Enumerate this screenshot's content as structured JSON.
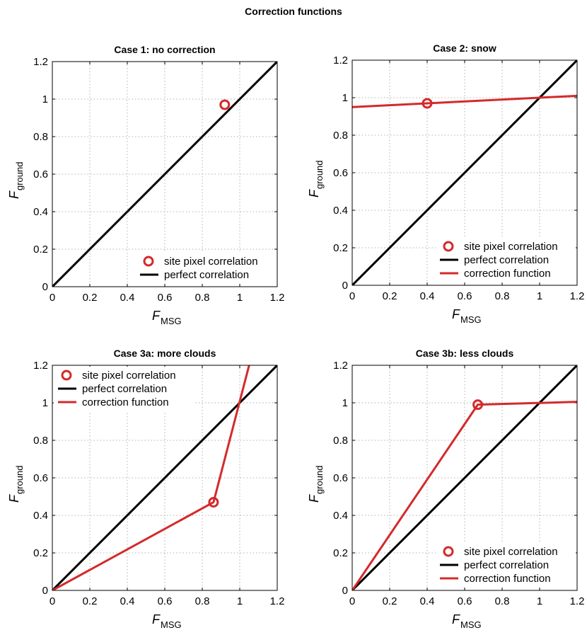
{
  "figure_title": "Correction functions",
  "colors": {
    "perfect": "#000000",
    "correction": "#d42a2a",
    "grid": "#b0b0b0"
  },
  "chart_data": [
    {
      "type": "line",
      "title": "Case 1: no correction",
      "xlabel_main": "F",
      "xlabel_sub": "MSG",
      "ylabel_main": "F",
      "ylabel_sub": "ground",
      "xlim": [
        0,
        1.2
      ],
      "ylim": [
        0,
        1.2
      ],
      "xticks": [
        "0",
        "0.2",
        "0.4",
        "0.6",
        "0.8",
        "1",
        "1.2"
      ],
      "yticks": [
        "0",
        "0.2",
        "0.4",
        "0.6",
        "0.8",
        "1",
        "1.2"
      ],
      "grid": true,
      "legend_position": "bottom-right",
      "series": [
        {
          "name": "site pixel correlation",
          "kind": "marker",
          "x": [
            0.92
          ],
          "y": [
            0.97
          ]
        },
        {
          "name": "perfect correlation",
          "kind": "perfect",
          "x": [
            0,
            1.2
          ],
          "y": [
            0,
            1.2
          ]
        }
      ]
    },
    {
      "type": "line",
      "title": "Case 2: snow",
      "xlabel_main": "F",
      "xlabel_sub": "MSG",
      "ylabel_main": "F",
      "ylabel_sub": "ground",
      "xlim": [
        0,
        1.2
      ],
      "ylim": [
        0,
        1.2
      ],
      "xticks": [
        "0",
        "0.2",
        "0.4",
        "0.6",
        "0.8",
        "1",
        "1.2"
      ],
      "yticks": [
        "0",
        "0.2",
        "0.4",
        "0.6",
        "0.8",
        "1",
        "1.2"
      ],
      "grid": true,
      "legend_position": "bottom-right",
      "series": [
        {
          "name": "site pixel correlation",
          "kind": "marker",
          "x": [
            0.4
          ],
          "y": [
            0.97
          ]
        },
        {
          "name": "perfect correlation",
          "kind": "perfect",
          "x": [
            0,
            1.2
          ],
          "y": [
            0,
            1.2
          ]
        },
        {
          "name": "correction function",
          "kind": "correction",
          "x": [
            0,
            1.2
          ],
          "y": [
            0.95,
            1.01
          ]
        }
      ]
    },
    {
      "type": "line",
      "title": "Case 3a: more clouds",
      "xlabel_main": "F",
      "xlabel_sub": "MSG",
      "ylabel_main": "F",
      "ylabel_sub": "ground",
      "xlim": [
        0,
        1.2
      ],
      "ylim": [
        0,
        1.2
      ],
      "xticks": [
        "0",
        "0.2",
        "0.4",
        "0.6",
        "0.8",
        "1",
        "1.2"
      ],
      "yticks": [
        "0",
        "0.2",
        "0.4",
        "0.6",
        "0.8",
        "1",
        "1.2"
      ],
      "grid": true,
      "legend_position": "top-left",
      "series": [
        {
          "name": "site pixel correlation",
          "kind": "marker",
          "x": [
            0.86
          ],
          "y": [
            0.47
          ]
        },
        {
          "name": "perfect correlation",
          "kind": "perfect",
          "x": [
            0,
            1.2
          ],
          "y": [
            0,
            1.2
          ]
        },
        {
          "name": "correction function",
          "kind": "correction",
          "x": [
            0,
            0.86,
            1.05
          ],
          "y": [
            0,
            0.47,
            1.2
          ]
        }
      ]
    },
    {
      "type": "line",
      "title": "Case 3b: less clouds",
      "xlabel_main": "F",
      "xlabel_sub": "MSG",
      "ylabel_main": "F",
      "ylabel_sub": "ground",
      "xlim": [
        0,
        1.2
      ],
      "ylim": [
        0,
        1.2
      ],
      "xticks": [
        "0",
        "0.2",
        "0.4",
        "0.6",
        "0.8",
        "1",
        "1.2"
      ],
      "yticks": [
        "0",
        "0.2",
        "0.4",
        "0.6",
        "0.8",
        "1",
        "1.2"
      ],
      "grid": true,
      "legend_position": "bottom-right",
      "series": [
        {
          "name": "site pixel correlation",
          "kind": "marker",
          "x": [
            0.67
          ],
          "y": [
            0.99
          ]
        },
        {
          "name": "perfect correlation",
          "kind": "perfect",
          "x": [
            0,
            1.2
          ],
          "y": [
            0,
            1.2
          ]
        },
        {
          "name": "correction function",
          "kind": "correction",
          "x": [
            0,
            0.67,
            1.2
          ],
          "y": [
            0,
            0.99,
            1.005
          ]
        }
      ]
    }
  ]
}
